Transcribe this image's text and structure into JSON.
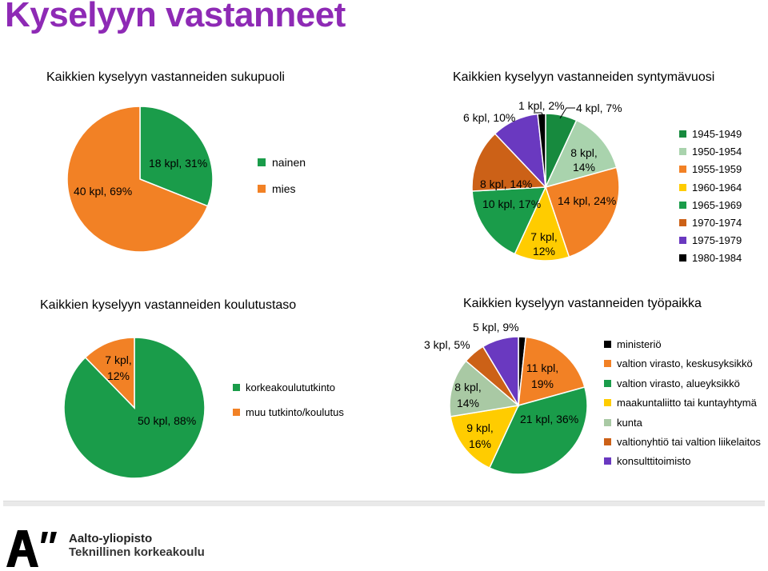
{
  "page": {
    "title": "Kyselyyn vastanneet",
    "logo": {
      "name": "Aalto-yliopisto",
      "unit": "Teknillinen korkeakoulu"
    }
  },
  "chart_data": [
    {
      "type": "pie",
      "title": "Kaikkien kyselyyn vastanneiden sukupuoli",
      "categories": [
        "nainen",
        "mies"
      ],
      "values": [
        18,
        40
      ],
      "labels": [
        "18 kpl, 31%",
        "40 kpl, 69%"
      ],
      "colors": [
        "#1a9c4a",
        "#f28125"
      ],
      "legend_position": "right"
    },
    {
      "type": "pie",
      "title": "Kaikkien kyselyyn vastanneiden syntymävuosi",
      "categories": [
        "1945-1949",
        "1950-1954",
        "1955-1959",
        "1960-1964",
        "1965-1969",
        "1970-1974",
        "1975-1979",
        "1980-1984"
      ],
      "values": [
        4,
        8,
        14,
        7,
        10,
        8,
        6,
        1
      ],
      "labels": [
        "4 kpl, 7%",
        "8 kpl, 14%",
        "14 kpl, 24%",
        "7 kpl, 12%",
        "10 kpl, 17%",
        "8 kpl, 14%",
        "6 kpl, 10%",
        "1 kpl, 2%"
      ],
      "colors": [
        "#178a3e",
        "#a9d3ad",
        "#f28125",
        "#ffcc00",
        "#1a9c4a",
        "#cc6117",
        "#6a39c0",
        "#000000"
      ],
      "legend_position": "right"
    },
    {
      "type": "pie",
      "title": "Kaikkien kyselyyn vastanneiden koulutustaso",
      "categories": [
        "korkeakoulututkinto",
        "muu tutkinto/koulutus"
      ],
      "values": [
        50,
        7
      ],
      "labels": [
        "50 kpl, 88%",
        "7 kpl, 12%"
      ],
      "colors": [
        "#1a9c4a",
        "#f28125"
      ],
      "legend_position": "right"
    },
    {
      "type": "pie",
      "title": "Kaikkien kyselyyn vastanneiden työpaikka",
      "categories": [
        "ministeriö",
        "valtion virasto, keskusyksikkö",
        "valtion virasto, alueyksikkö",
        "maakuntaliitto tai kuntayhtymä",
        "kunta",
        "valtionyhtiö tai valtion liikelaitos",
        "konsulttitoimisto"
      ],
      "values": [
        1,
        11,
        21,
        9,
        8,
        3,
        5
      ],
      "labels": [
        "",
        "11 kpl, 19%",
        "21 kpl, 36%",
        "9 kpl, 16%",
        "8 kpl, 14%",
        "3 kpl, 5%",
        "5 kpl, 9%"
      ],
      "colors": [
        "#000000",
        "#f28125",
        "#1a9c4a",
        "#ffcc00",
        "#a9c9a4",
        "#cc6117",
        "#6a39c0"
      ],
      "legend_position": "right"
    }
  ]
}
